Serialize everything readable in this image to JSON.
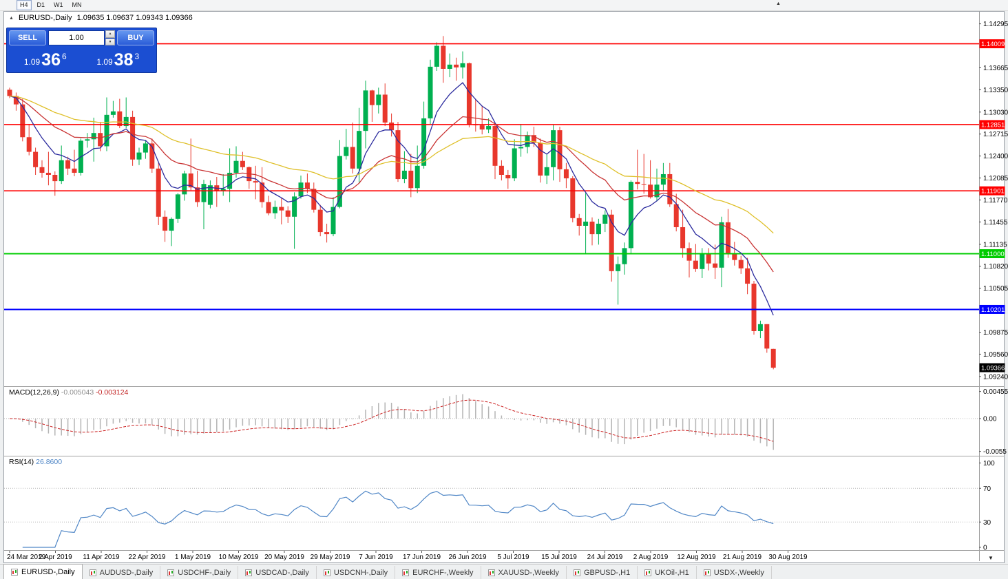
{
  "toolbar": {
    "timeframes": [
      {
        "label": "H4",
        "active": true
      },
      {
        "label": "D1",
        "active": false
      },
      {
        "label": "W1",
        "active": false
      },
      {
        "label": "MN",
        "active": false
      }
    ]
  },
  "chart": {
    "symbol_period": "EURUSD-,Daily",
    "ohlc_text": "1.09635 1.09637 1.09343 1.09366"
  },
  "trade_panel": {
    "sell_label": "SELL",
    "buy_label": "BUY",
    "volume": "1.00",
    "sell_price_prefix": "1.09",
    "sell_price_big": "36",
    "sell_price_sup": "6",
    "buy_price_prefix": "1.09",
    "buy_price_big": "38",
    "buy_price_sup": "3"
  },
  "macd_panel": {
    "label": "MACD(12,26,9)",
    "main_value": "-0.005043",
    "signal_value": "-0.003124",
    "ticks": [
      {
        "v": 0.00455,
        "label": "0.00455"
      },
      {
        "v": 0,
        "label": "0.00"
      },
      {
        "v": -0.0055,
        "label": "-0.0055"
      }
    ]
  },
  "rsi_panel": {
    "label": "RSI(14)",
    "value": "26.8600",
    "ticks": [
      100,
      70,
      30,
      0
    ],
    "guide_levels": [
      70,
      30
    ]
  },
  "time_axis": {
    "labels": [
      "24 Mar 2019",
      "2 Apr 2019",
      "11 Apr 2019",
      "22 Apr 2019",
      "1 May 2019",
      "10 May 2019",
      "20 May 2019",
      "29 May 2019",
      "7 Jun 2019",
      "17 Jun 2019",
      "26 Jun 2019",
      "5 Jul 2019",
      "15 Jul 2019",
      "24 Jul 2019",
      "2 Aug 2019",
      "12 Aug 2019",
      "21 Aug 2019",
      "30 Aug 2019"
    ]
  },
  "tabs": [
    {
      "label": "EURUSD-,Daily",
      "active": true
    },
    {
      "label": "AUDUSD-,Daily",
      "active": false
    },
    {
      "label": "USDCHF-,Daily",
      "active": false
    },
    {
      "label": "USDCAD-,Daily",
      "active": false
    },
    {
      "label": "USDCNH-,Daily",
      "active": false
    },
    {
      "label": "EURCHF-,Weekly",
      "active": false
    },
    {
      "label": "XAUUSD-,Weekly",
      "active": false
    },
    {
      "label": "GBPUSD-,H1",
      "active": false
    },
    {
      "label": "UKOil-,H1",
      "active": false
    },
    {
      "label": "USDX-,Weekly",
      "active": false
    }
  ],
  "chart_data": {
    "type": "candlestick",
    "title": "EURUSD-,Daily",
    "ylim": [
      1.0912,
      1.1437
    ],
    "up_color": "#00b050",
    "down_color": "#e8372c",
    "price_ticks": [
      1.14295,
      1.13665,
      1.1335,
      1.1303,
      1.12715,
      1.124,
      1.12085,
      1.1177,
      1.11455,
      1.11135,
      1.1082,
      1.10505,
      1.09875,
      1.0956,
      1.0924
    ],
    "levels": [
      {
        "value": 1.14009,
        "color": "#ff0000",
        "width": 1.7
      },
      {
        "value": 1.12851,
        "color": "#ff0000",
        "width": 1.7
      },
      {
        "value": 1.11901,
        "color": "#ff0000",
        "width": 1.7
      },
      {
        "value": 1.11,
        "color": "#00cc00",
        "width": 2
      },
      {
        "value": 1.10201,
        "color": "#0000ff",
        "width": 2
      }
    ],
    "current_price": {
      "value": 1.09366,
      "color": "#000000"
    },
    "moving_averages": [
      {
        "period": 8,
        "color": "#2b2b9e"
      },
      {
        "period": 21,
        "color": "#c93434"
      },
      {
        "period": 45,
        "color": "#dfc02a"
      }
    ],
    "macd": {
      "fast": 12,
      "slow": 26,
      "signal": 9,
      "hist_color": "#b4b4b4",
      "signal_color": "#cc2222"
    },
    "rsi": {
      "period": 14,
      "color": "#4f86c6"
    },
    "candles": [
      [
        1.1335,
        1.1338,
        1.1323,
        1.1326
      ],
      [
        1.1326,
        1.1331,
        1.1305,
        1.1314
      ],
      [
        1.1314,
        1.1322,
        1.1261,
        1.1267
      ],
      [
        1.1267,
        1.1286,
        1.1241,
        1.1246
      ],
      [
        1.1246,
        1.1252,
        1.1213,
        1.1224
      ],
      [
        1.1224,
        1.1234,
        1.1209,
        1.1216
      ],
      [
        1.1216,
        1.1246,
        1.1198,
        1.1213
      ],
      [
        1.1213,
        1.1218,
        1.1183,
        1.1204
      ],
      [
        1.1204,
        1.1255,
        1.12,
        1.1234
      ],
      [
        1.1234,
        1.1239,
        1.1213,
        1.1222
      ],
      [
        1.1222,
        1.1249,
        1.1211,
        1.1216
      ],
      [
        1.1216,
        1.1265,
        1.1212,
        1.1262
      ],
      [
        1.1262,
        1.1273,
        1.1252,
        1.1264
      ],
      [
        1.1264,
        1.1295,
        1.1232,
        1.1273
      ],
      [
        1.1273,
        1.1289,
        1.1247,
        1.1254
      ],
      [
        1.1254,
        1.1324,
        1.1247,
        1.1299
      ],
      [
        1.1299,
        1.1319,
        1.1295,
        1.1304
      ],
      [
        1.1304,
        1.1322,
        1.128,
        1.1283
      ],
      [
        1.1283,
        1.1324,
        1.128,
        1.1296
      ],
      [
        1.1296,
        1.1305,
        1.1226,
        1.1235
      ],
      [
        1.1235,
        1.1252,
        1.1227,
        1.1245
      ],
      [
        1.1245,
        1.1262,
        1.1236,
        1.1258
      ],
      [
        1.1258,
        1.1265,
        1.1216,
        1.1222
      ],
      [
        1.1222,
        1.123,
        1.1141,
        1.1153
      ],
      [
        1.1153,
        1.1162,
        1.1117,
        1.1133
      ],
      [
        1.1133,
        1.1152,
        1.1111,
        1.115
      ],
      [
        1.115,
        1.1187,
        1.1144,
        1.1185
      ],
      [
        1.1185,
        1.1219,
        1.1176,
        1.1215
      ],
      [
        1.1215,
        1.1265,
        1.1191,
        1.1195
      ],
      [
        1.1195,
        1.1219,
        1.1167,
        1.1174
      ],
      [
        1.1174,
        1.1206,
        1.1135,
        1.12
      ],
      [
        1.117,
        1.1205,
        1.1165,
        1.1198
      ],
      [
        1.1198,
        1.121,
        1.1167,
        1.119
      ],
      [
        1.119,
        1.1214,
        1.1183,
        1.1193
      ],
      [
        1.1193,
        1.1251,
        1.1174,
        1.1216
      ],
      [
        1.1216,
        1.1254,
        1.1209,
        1.1233
      ],
      [
        1.1233,
        1.1246,
        1.122,
        1.1224
      ],
      [
        1.1224,
        1.1225,
        1.1193,
        1.1204
      ],
      [
        1.1204,
        1.1226,
        1.1178,
        1.1202
      ],
      [
        1.1202,
        1.1224,
        1.1166,
        1.1174
      ],
      [
        1.1174,
        1.1183,
        1.1155,
        1.1158
      ],
      [
        1.1158,
        1.1176,
        1.115,
        1.1167
      ],
      [
        1.1167,
        1.118,
        1.1142,
        1.1162
      ],
      [
        1.1162,
        1.1168,
        1.1144,
        1.1153
      ],
      [
        1.1153,
        1.1188,
        1.1107,
        1.1182
      ],
      [
        1.1182,
        1.1212,
        1.1179,
        1.1202
      ],
      [
        1.1202,
        1.1215,
        1.1187,
        1.1193
      ],
      [
        1.1193,
        1.1202,
        1.1159,
        1.1163
      ],
      [
        1.1163,
        1.117,
        1.1125,
        1.1131
      ],
      [
        1.1131,
        1.1143,
        1.1116,
        1.1128
      ],
      [
        1.1128,
        1.1181,
        1.1125,
        1.1167
      ],
      [
        1.1167,
        1.1263,
        1.1165,
        1.124
      ],
      [
        1.124,
        1.1279,
        1.1235,
        1.1253
      ],
      [
        1.1253,
        1.1288,
        1.1215,
        1.1222
      ],
      [
        1.1222,
        1.1309,
        1.1201,
        1.1276
      ],
      [
        1.1276,
        1.1348,
        1.1251,
        1.1334
      ],
      [
        1.1334,
        1.1335,
        1.1289,
        1.1313
      ],
      [
        1.1313,
        1.1338,
        1.1301,
        1.1328
      ],
      [
        1.1328,
        1.1344,
        1.1283,
        1.1288
      ],
      [
        1.1288,
        1.1301,
        1.1268,
        1.1277
      ],
      [
        1.1277,
        1.1289,
        1.1203,
        1.1207
      ],
      [
        1.1207,
        1.1247,
        1.1201,
        1.1219
      ],
      [
        1.1219,
        1.1243,
        1.1181,
        1.1194
      ],
      [
        1.1194,
        1.1255,
        1.1187,
        1.1226
      ],
      [
        1.1226,
        1.1318,
        1.1222,
        1.1294
      ],
      [
        1.1294,
        1.1378,
        1.1286,
        1.1368
      ],
      [
        1.1368,
        1.1403,
        1.1362,
        1.1398
      ],
      [
        1.1398,
        1.1412,
        1.1345,
        1.1365
      ],
      [
        1.1365,
        1.1387,
        1.1353,
        1.1371
      ],
      [
        1.1371,
        1.1381,
        1.1348,
        1.1367
      ],
      [
        1.1367,
        1.139,
        1.1351,
        1.1373
      ],
      [
        1.1373,
        1.1374,
        1.1281,
        1.1285
      ],
      [
        1.1285,
        1.1322,
        1.1275,
        1.1284
      ],
      [
        1.1284,
        1.1312,
        1.1271,
        1.1278
      ],
      [
        1.1278,
        1.1294,
        1.1273,
        1.1283
      ],
      [
        1.1283,
        1.1288,
        1.1207,
        1.1226
      ],
      [
        1.1226,
        1.1234,
        1.1205,
        1.1213
      ],
      [
        1.1213,
        1.122,
        1.1193,
        1.1208
      ],
      [
        1.1208,
        1.1264,
        1.1204,
        1.1251
      ],
      [
        1.1251,
        1.1286,
        1.1239,
        1.1253
      ],
      [
        1.1253,
        1.1275,
        1.1244,
        1.127
      ],
      [
        1.127,
        1.1282,
        1.1253,
        1.1259
      ],
      [
        1.1259,
        1.1265,
        1.1202,
        1.1212
      ],
      [
        1.1212,
        1.1243,
        1.12,
        1.1224
      ],
      [
        1.1224,
        1.1285,
        1.1205,
        1.1277
      ],
      [
        1.1277,
        1.1282,
        1.1203,
        1.1221
      ],
      [
        1.1221,
        1.123,
        1.1194,
        1.1208
      ],
      [
        1.1208,
        1.1211,
        1.1145,
        1.1151
      ],
      [
        1.1151,
        1.1157,
        1.1126,
        1.114
      ],
      [
        1.114,
        1.1187,
        1.1101,
        1.1146
      ],
      [
        1.1146,
        1.1152,
        1.1112,
        1.1128
      ],
      [
        1.1128,
        1.115,
        1.1113,
        1.1143
      ],
      [
        1.1143,
        1.1162,
        1.1131,
        1.1156
      ],
      [
        1.1156,
        1.1163,
        1.106,
        1.1075
      ],
      [
        1.1075,
        1.1096,
        1.1027,
        1.1085
      ],
      [
        1.1085,
        1.1116,
        1.107,
        1.1108
      ],
      [
        1.1108,
        1.1205,
        1.1101,
        1.1203
      ],
      [
        1.1203,
        1.1249,
        1.1192,
        1.12
      ],
      [
        1.12,
        1.1243,
        1.1186,
        1.1199
      ],
      [
        1.1199,
        1.1234,
        1.1179,
        1.1181
      ],
      [
        1.1181,
        1.1222,
        1.1175,
        1.1199
      ],
      [
        1.1199,
        1.123,
        1.119,
        1.1214
      ],
      [
        1.1214,
        1.123,
        1.1167,
        1.1171
      ],
      [
        1.1171,
        1.1186,
        1.1132,
        1.1138
      ],
      [
        1.1138,
        1.1163,
        1.1094,
        1.1108
      ],
      [
        1.1108,
        1.1116,
        1.1066,
        1.109
      ],
      [
        1.109,
        1.1114,
        1.1074,
        1.1078
      ],
      [
        1.1078,
        1.1108,
        1.1065,
        1.11
      ],
      [
        1.11,
        1.1108,
        1.1076,
        1.1086
      ],
      [
        1.1086,
        1.1113,
        1.1064,
        1.108
      ],
      [
        1.108,
        1.1153,
        1.1052,
        1.1145
      ],
      [
        1.1145,
        1.1164,
        1.1094,
        1.1101
      ],
      [
        1.1101,
        1.1117,
        1.1083,
        1.1091
      ],
      [
        1.1091,
        1.1097,
        1.1071,
        1.1079
      ],
      [
        1.1079,
        1.1094,
        1.1042,
        1.1057
      ],
      [
        1.1057,
        1.1061,
        1.0984,
        1.0989
      ],
      [
        1.0989,
        1.1004,
        1.0979,
        1.0999
      ],
      [
        1.0999,
        1.0999,
        1.0958,
        1.0964
      ],
      [
        1.09635,
        1.09637,
        1.09343,
        1.09366
      ]
    ]
  }
}
